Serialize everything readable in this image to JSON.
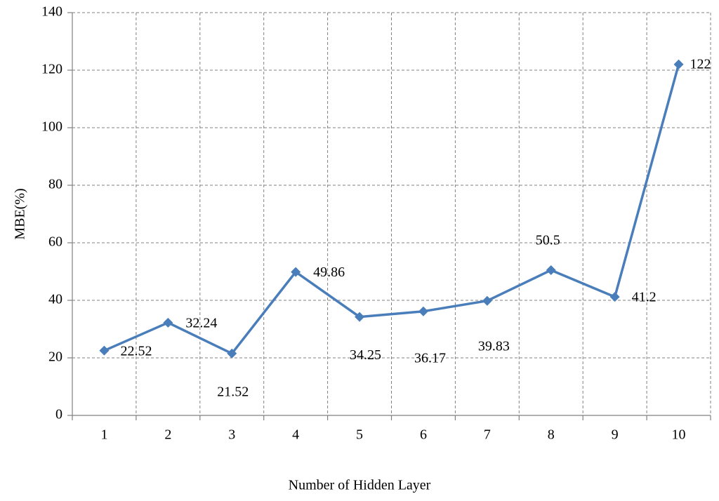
{
  "chart_data": {
    "type": "line",
    "x_label": "Number of Hidden Layer",
    "y_label": "MBE(%)",
    "categories": [
      "1",
      "2",
      "3",
      "4",
      "5",
      "6",
      "7",
      "8",
      "9",
      "10"
    ],
    "series": [
      {
        "color": "#4a7ebb",
        "values": [
          22.52,
          32.24,
          21.52,
          49.86,
          34.25,
          36.17,
          39.83,
          50.5,
          41.2,
          122
        ]
      }
    ],
    "ylim": [
      0,
      140
    ],
    "yticks": [
      0,
      20,
      40,
      60,
      80,
      100,
      120,
      140
    ],
    "grid": true
  }
}
